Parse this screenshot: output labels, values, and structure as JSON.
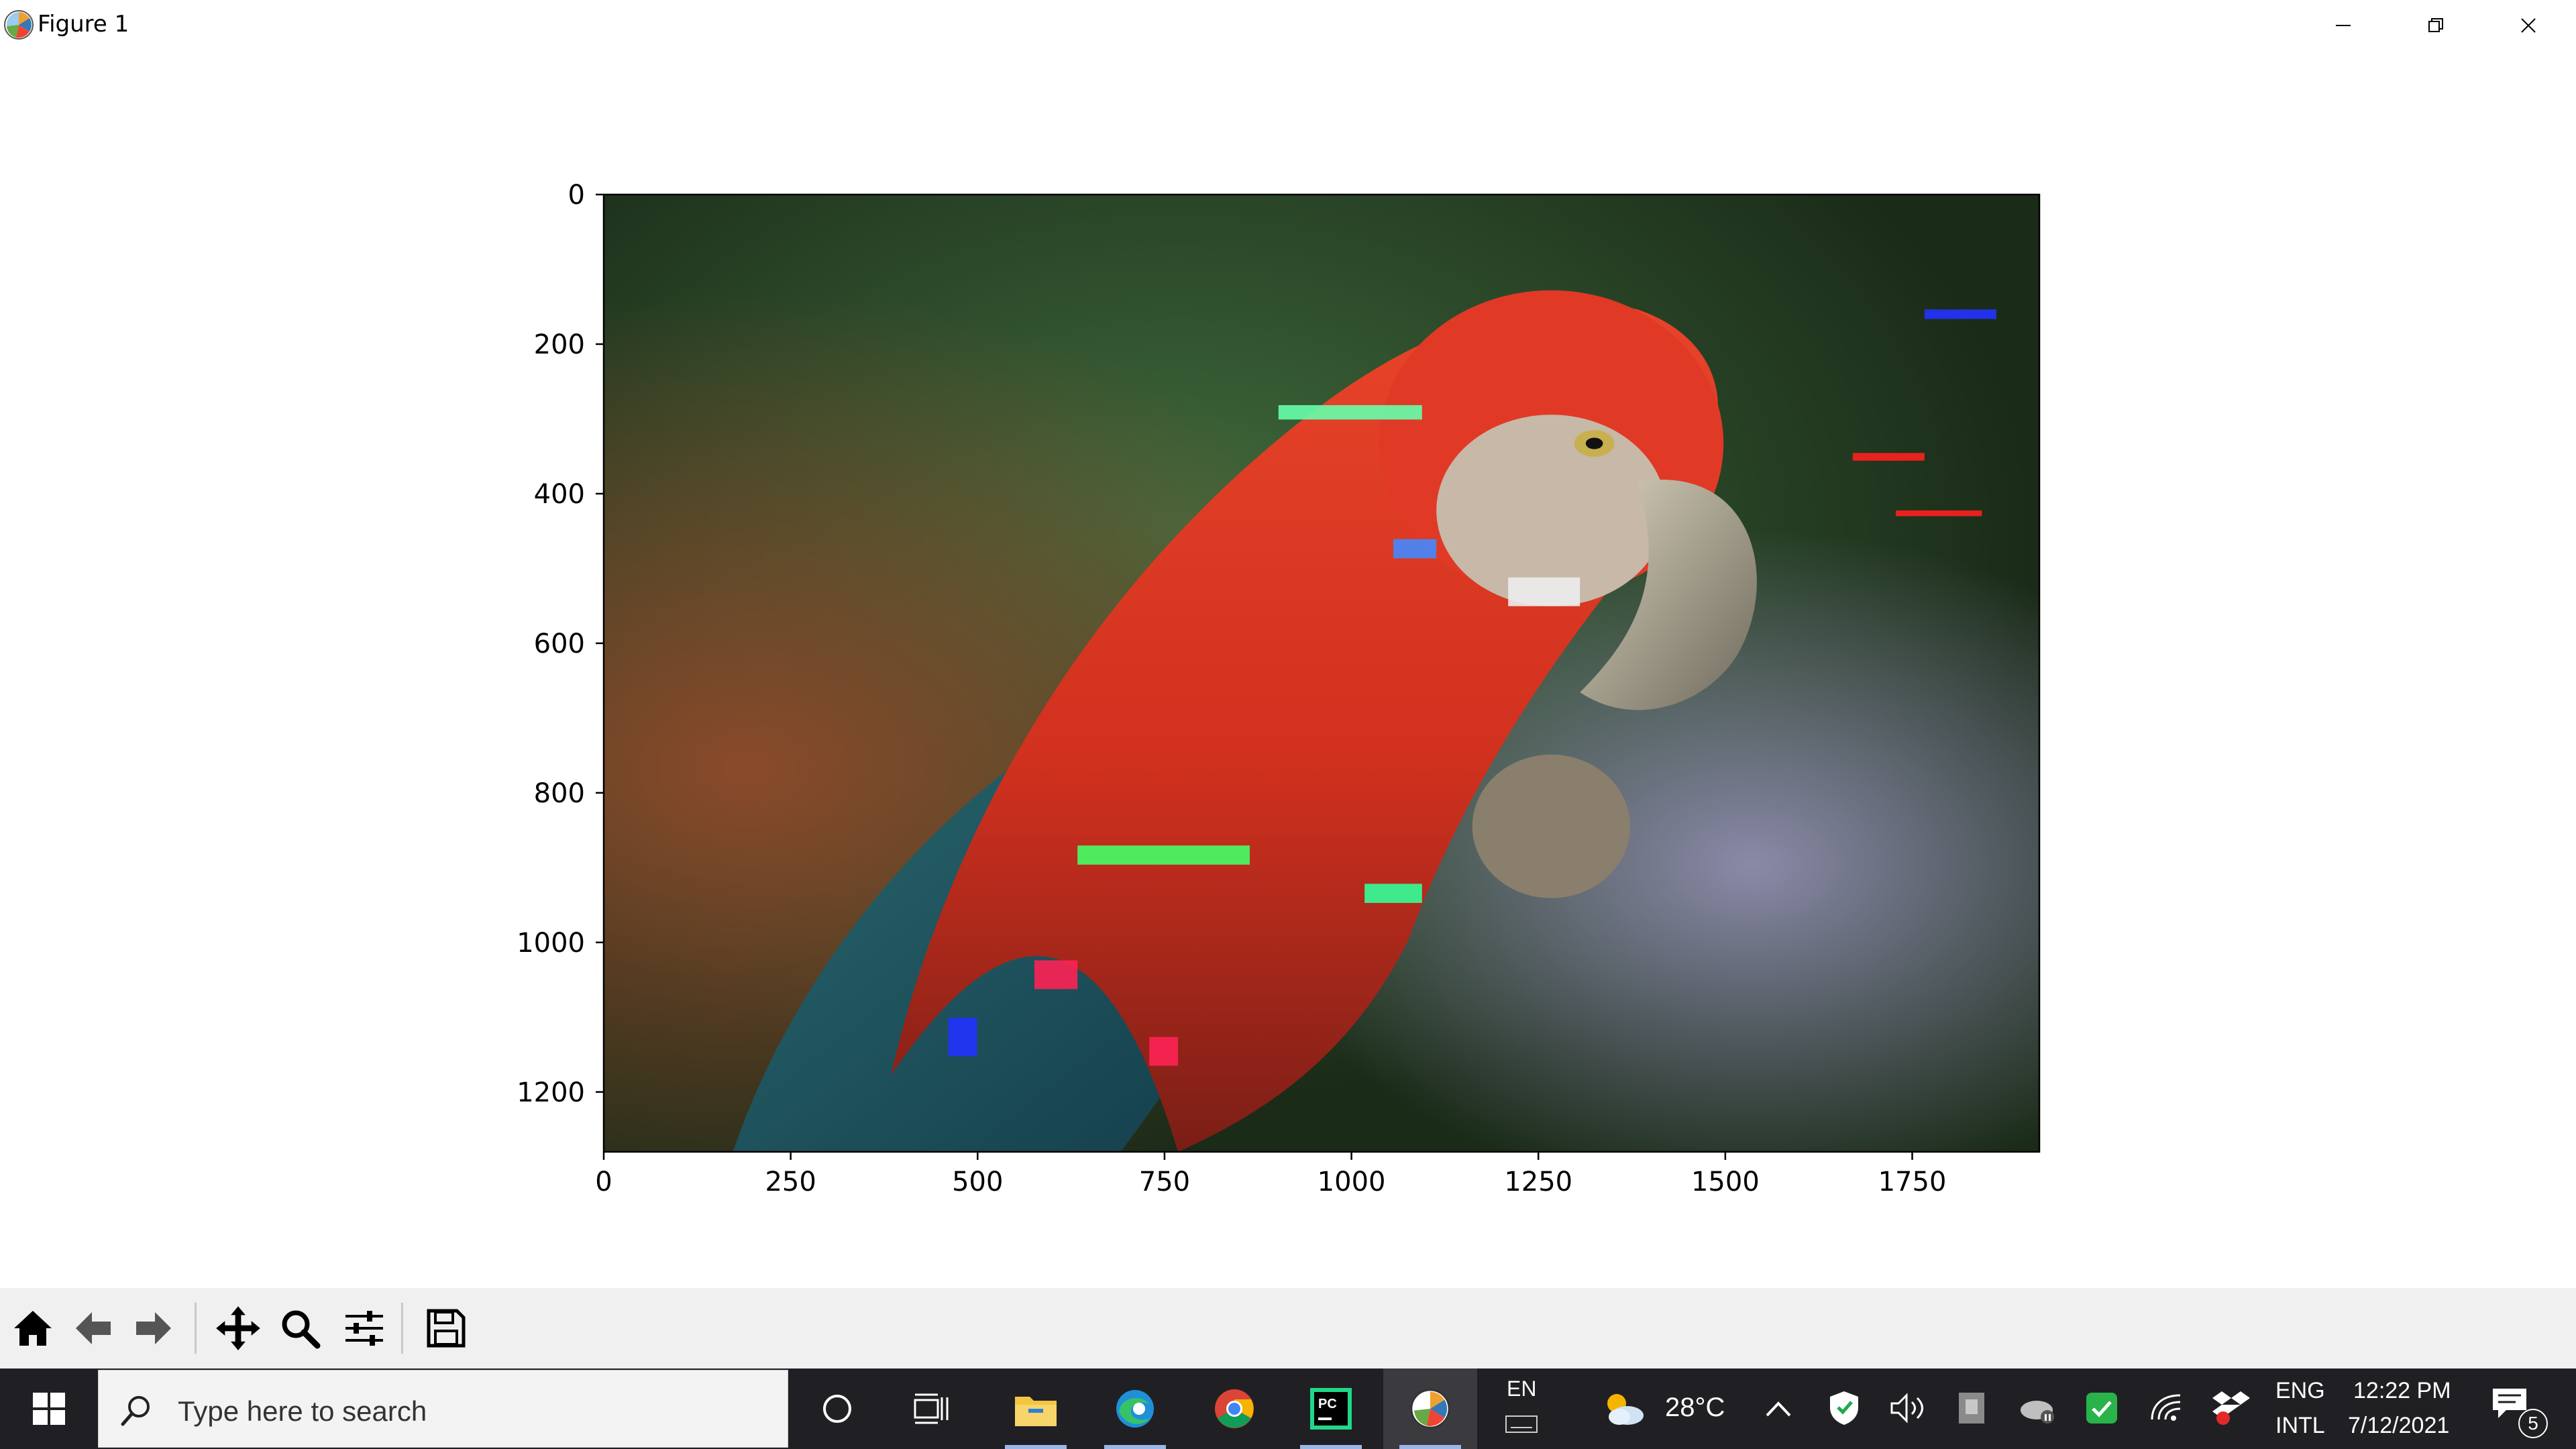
{
  "window": {
    "title": "Figure 1"
  },
  "chart_data": {
    "type": "image",
    "title": "",
    "xlabel": "",
    "ylabel": "",
    "xlim": [
      0,
      1920
    ],
    "ylim": [
      1280,
      0
    ],
    "x_ticks": [
      0,
      250,
      500,
      750,
      1000,
      1250,
      1500,
      1750
    ],
    "y_ticks": [
      0,
      200,
      400,
      600,
      800,
      1000,
      1200
    ],
    "grid": false,
    "legend": "none",
    "image_subject": "parrot"
  },
  "toolbar": {
    "buttons": [
      "home-icon",
      "back-icon",
      "forward-icon",
      "pan-icon",
      "zoom-icon",
      "configure-subplots-icon",
      "save-icon"
    ]
  },
  "taskbar": {
    "search_placeholder": "Type here to search",
    "input_lang": "EN",
    "weather_temp": "28°C",
    "lang_line1": "ENG",
    "lang_line2": "INTL",
    "time": "12:22 PM",
    "date": "7/12/2021",
    "notification_count": "5",
    "colors": {
      "taskbar_bg": "#202024",
      "accent_active": "#9bb7e8",
      "pycharm_green": "#21d789"
    }
  }
}
